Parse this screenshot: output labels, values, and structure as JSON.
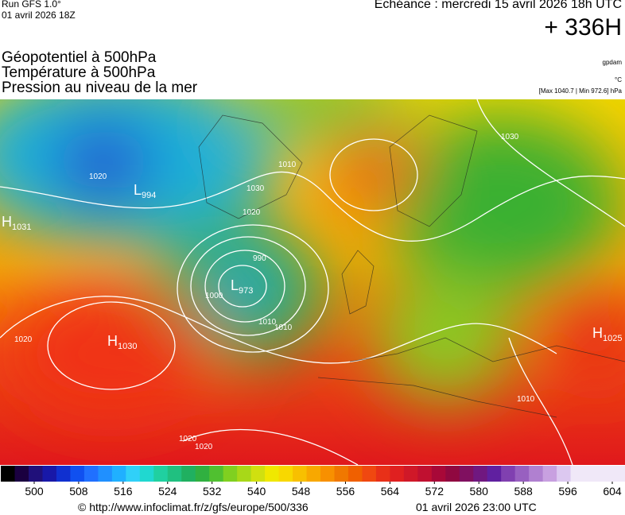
{
  "header": {
    "run": "Run GFS 1.0°",
    "run_date": "01 avril 2026 18Z",
    "valid": "Echéance : mercredi 15 avril 2026 18h UTC",
    "lead": "+ 336H"
  },
  "fields": [
    "Géopotentiel à 500hPa",
    "Température à 500hPa",
    "Pression au niveau de la mer"
  ],
  "units": [
    "gpdam",
    "°C",
    "[Max 1040.7 | Min 972.6] hPa"
  ],
  "centers": [
    {
      "symbol": "H",
      "value": "1030"
    },
    {
      "symbol": "L",
      "value": "973"
    },
    {
      "symbol": "H",
      "value": "1031"
    },
    {
      "symbol": "H",
      "value": "1025"
    },
    {
      "symbol": "L",
      "value": "994"
    }
  ],
  "isobar_labels": [
    "1020",
    "1010",
    "1000",
    "990",
    "1010",
    "1020",
    "1030",
    "1020",
    "1010",
    "1020",
    "1030",
    "1020",
    "1010"
  ],
  "colorbar_ticks": [
    500,
    508,
    516,
    524,
    532,
    540,
    548,
    556,
    564,
    572,
    580,
    588,
    596,
    604
  ],
  "footer": {
    "url": "© http://www.infoclimat.fr/z/gfs/europe/500/336",
    "date": "01 avril 2026 23:00 UTC"
  }
}
